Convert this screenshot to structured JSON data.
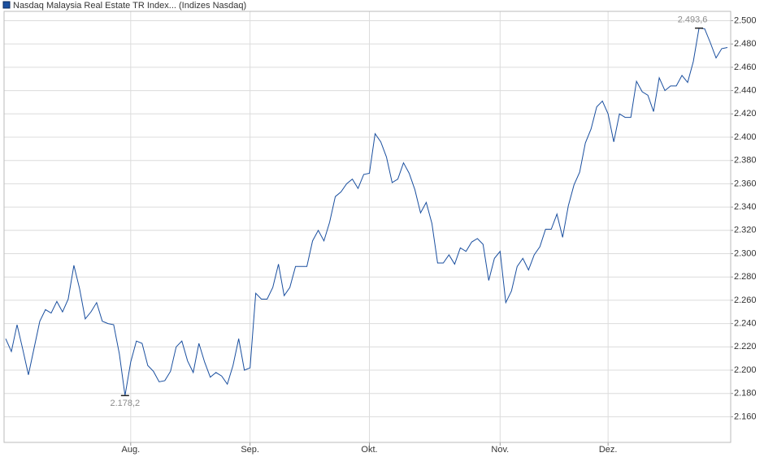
{
  "chart_data": {
    "type": "line",
    "series": [
      {
        "name": "Nasdaq Malaysia Real Estate TR Index... (Indizes Nasdaq)",
        "color": "#1a4f9f",
        "values": [
          2227,
          2216,
          2239,
          2218,
          2196,
          2219,
          2242,
          2252,
          2249,
          2259,
          2250,
          2261,
          2290,
          2270,
          2244,
          2250,
          2258,
          2242,
          2240,
          2239,
          2214,
          2178.2,
          2207,
          2225,
          2223,
          2204,
          2199,
          2190,
          2191,
          2199,
          2220,
          2225,
          2208,
          2198,
          2223,
          2207,
          2194,
          2198,
          2195,
          2188,
          2204,
          2227,
          2200,
          2202,
          2266,
          2261,
          2261,
          2271,
          2291,
          2264,
          2271,
          2289,
          2289,
          2289,
          2311,
          2320,
          2311,
          2327,
          2349,
          2353,
          2360,
          2364,
          2356,
          2368,
          2369,
          2403,
          2396,
          2383,
          2361,
          2364,
          2378,
          2369,
          2355,
          2335,
          2344,
          2326,
          2292,
          2292,
          2299,
          2291,
          2305,
          2302,
          2310,
          2313,
          2308,
          2277,
          2296,
          2302,
          2258,
          2268,
          2289,
          2296,
          2286,
          2299,
          2306,
          2321,
          2321,
          2334,
          2314,
          2341,
          2359,
          2370,
          2395,
          2407,
          2426,
          2431,
          2420,
          2396,
          2420,
          2417,
          2417,
          2448,
          2439,
          2436,
          2422,
          2451,
          2440,
          2444,
          2444,
          2453,
          2447,
          2465,
          2493.6,
          2493,
          2481,
          2468,
          2476,
          2477
        ],
        "value_labels": [
          null,
          null,
          null,
          null,
          null,
          null,
          null,
          null,
          null,
          null,
          null,
          null,
          null,
          null,
          null,
          null,
          null,
          null,
          null,
          null,
          null,
          "2.178,2",
          null,
          null,
          null,
          null,
          null,
          null,
          null,
          null,
          null,
          null,
          null,
          null,
          null,
          null,
          null,
          null,
          null,
          null,
          null,
          null,
          null,
          null,
          null,
          null,
          null,
          null,
          null,
          null,
          null,
          null,
          null,
          null,
          null,
          null,
          null,
          null,
          null,
          null,
          null,
          null,
          null,
          null,
          null,
          null,
          null,
          null,
          null,
          null,
          null,
          null,
          null,
          null,
          null,
          null,
          null,
          null,
          null,
          null,
          null,
          null,
          null,
          null,
          null,
          null,
          null,
          null,
          null,
          null,
          null,
          null,
          null,
          null,
          null,
          null,
          null,
          null,
          null,
          null,
          null,
          null,
          null,
          null,
          null,
          null,
          null,
          null,
          null,
          null,
          null,
          null,
          null,
          null,
          null,
          null,
          null,
          null,
          null,
          null,
          null,
          null,
          "2.493,6",
          null,
          null,
          null,
          null,
          null
        ]
      }
    ],
    "categories": [
      null,
      null,
      null,
      null,
      null,
      null,
      null,
      null,
      null,
      null,
      null,
      null,
      null,
      null,
      null,
      null,
      null,
      null,
      null,
      null,
      null,
      null,
      "Aug.",
      null,
      null,
      null,
      null,
      null,
      null,
      null,
      null,
      null,
      null,
      null,
      null,
      null,
      null,
      null,
      null,
      null,
      null,
      null,
      null,
      "Sep.",
      null,
      null,
      null,
      null,
      null,
      null,
      null,
      null,
      null,
      null,
      null,
      null,
      null,
      null,
      null,
      null,
      null,
      null,
      null,
      null,
      "Okt.",
      null,
      null,
      null,
      null,
      null,
      null,
      null,
      null,
      null,
      null,
      null,
      null,
      null,
      null,
      null,
      null,
      null,
      null,
      null,
      null,
      null,
      null,
      "Nov.",
      null,
      null,
      null,
      null,
      null,
      null,
      null,
      null,
      null,
      null,
      null,
      null,
      null,
      null,
      null,
      null,
      null,
      null,
      "Dez.",
      null,
      null,
      null,
      null,
      null,
      null,
      null,
      null,
      null,
      null,
      null,
      null,
      null,
      null,
      null,
      null,
      null,
      null,
      null,
      null,
      null
    ],
    "ylim": [
      2138,
      2508
    ],
    "yticks": [
      {
        "value": 2160,
        "label": "2.160"
      },
      {
        "value": 2180,
        "label": "2.180"
      },
      {
        "value": 2200,
        "label": "2.200"
      },
      {
        "value": 2220,
        "label": "2.220"
      },
      {
        "value": 2240,
        "label": "2.240"
      },
      {
        "value": 2260,
        "label": "2.260"
      },
      {
        "value": 2280,
        "label": "2.280"
      },
      {
        "value": 2300,
        "label": "2.300"
      },
      {
        "value": 2320,
        "label": "2.320"
      },
      {
        "value": 2340,
        "label": "2.340"
      },
      {
        "value": 2360,
        "label": "2.360"
      },
      {
        "value": 2380,
        "label": "2.380"
      },
      {
        "value": 2400,
        "label": "2.400"
      },
      {
        "value": 2420,
        "label": "2.420"
      },
      {
        "value": 2440,
        "label": "2.440"
      },
      {
        "value": 2460,
        "label": "2.460"
      },
      {
        "value": 2480,
        "label": "2.480"
      },
      {
        "value": 2500,
        "label": "2.500"
      }
    ],
    "grid": true
  }
}
